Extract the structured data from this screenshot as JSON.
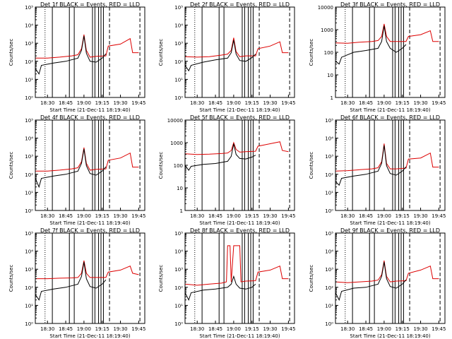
{
  "colors": {
    "events": "#000000",
    "lld": "#dd0000",
    "background": "#ffffff"
  },
  "common": {
    "xlabel": "Start Time (21-Dec-11 18:19:40)",
    "ylabel": "Counts/sec",
    "x_tick_labels": [
      "18:30",
      "18:45",
      "19:00",
      "19:15",
      "19:30",
      "19:45"
    ]
  },
  "chart_data": [
    {
      "type": "line",
      "title": "Det 1f BLACK = Events, RED = LLD",
      "scale": "log",
      "ylim": [
        1,
        100000
      ],
      "y_tick_labels": [
        "10⁰",
        "10¹",
        "10²",
        "10³",
        "10⁴",
        "10⁵"
      ],
      "series": [
        {
          "x": [
            "18:20",
            "18:30",
            "18:40",
            "18:50",
            "18:55",
            "18:58",
            "19:00",
            "19:02",
            "19:05",
            "19:10",
            "19:18",
            "19:20",
            "19:30",
            "19:38",
            "19:40",
            "19:45"
          ],
          "values": [
            150,
            150,
            170,
            200,
            230,
            500,
            3000,
            400,
            170,
            190,
            200,
            700,
            900,
            1800,
            300,
            300
          ],
          "color": "lld"
        },
        {
          "x": [
            "18:20",
            "18:23",
            "18:25",
            "18:35",
            "18:45",
            "18:55",
            "18:58",
            "19:00",
            "19:02",
            "19:05",
            "19:10",
            "19:15",
            "19:18"
          ],
          "values": [
            40,
            20,
            60,
            80,
            100,
            150,
            400,
            2500,
            280,
            100,
            90,
            150,
            260
          ],
          "color": "events"
        }
      ],
      "vlines_solid": [
        "18:34",
        "18:48",
        "18:52",
        "19:07",
        "19:09",
        "19:12",
        "19:14",
        "19:16"
      ],
      "vlines_dashed": [
        "19:21",
        "19:46"
      ],
      "vlines_dotted": [
        "18:28",
        "19:50"
      ]
    },
    {
      "type": "line",
      "title": "Det 2f BLACK = Events, RED = LLD",
      "scale": "log",
      "ylim": [
        1,
        100000
      ],
      "y_tick_labels": [
        "10⁰",
        "10¹",
        "10²",
        "10³",
        "10⁴",
        "10⁵"
      ],
      "series": [
        {
          "x": [
            "18:20",
            "18:30",
            "18:40",
            "18:50",
            "18:55",
            "18:58",
            "19:00",
            "19:02",
            "19:05",
            "19:10",
            "19:18",
            "19:20",
            "19:30",
            "19:38",
            "19:40",
            "19:45"
          ],
          "values": [
            180,
            170,
            180,
            220,
            250,
            400,
            2000,
            350,
            180,
            200,
            200,
            500,
            700,
            1200,
            300,
            300
          ],
          "color": "lld"
        },
        {
          "x": [
            "18:20",
            "18:23",
            "18:25",
            "18:35",
            "18:45",
            "18:55",
            "18:58",
            "19:00",
            "19:02",
            "19:05",
            "19:10",
            "19:15",
            "19:18"
          ],
          "values": [
            60,
            30,
            60,
            90,
            120,
            150,
            300,
            1500,
            250,
            110,
            100,
            160,
            250
          ],
          "color": "events"
        }
      ],
      "vlines_solid": [
        "18:34",
        "18:48",
        "18:52",
        "19:07",
        "19:09",
        "19:12",
        "19:14",
        "19:16"
      ],
      "vlines_dashed": [
        "19:21",
        "19:46"
      ],
      "vlines_dotted": [
        "18:28",
        "19:50"
      ]
    },
    {
      "type": "line",
      "title": "Det 3f BLACK = Events, RED = LLD",
      "scale": "log",
      "ylim": [
        1,
        10000
      ],
      "y_tick_labels": [
        "1",
        "10",
        "100",
        "1000",
        "10000"
      ],
      "series": [
        {
          "x": [
            "18:20",
            "18:30",
            "18:40",
            "18:50",
            "18:55",
            "18:58",
            "19:00",
            "19:02",
            "19:05",
            "19:10",
            "19:18",
            "19:20",
            "19:30",
            "19:38",
            "19:40",
            "19:45"
          ],
          "values": [
            260,
            250,
            280,
            300,
            330,
            500,
            1800,
            500,
            300,
            300,
            300,
            500,
            600,
            900,
            300,
            300
          ],
          "color": "lld"
        },
        {
          "x": [
            "18:20",
            "18:23",
            "18:25",
            "18:35",
            "18:45",
            "18:55",
            "18:58",
            "19:00",
            "19:02",
            "19:05",
            "19:10",
            "19:15",
            "19:18"
          ],
          "values": [
            40,
            30,
            60,
            100,
            120,
            150,
            300,
            1500,
            300,
            150,
            100,
            150,
            220
          ],
          "color": "events"
        }
      ],
      "vlines_solid": [
        "18:34",
        "18:48",
        "18:52",
        "19:07",
        "19:09",
        "19:12",
        "19:14",
        "19:16"
      ],
      "vlines_dashed": [
        "19:21",
        "19:46"
      ],
      "vlines_dotted": [
        "18:28",
        "19:50"
      ]
    },
    {
      "type": "line",
      "title": "Det 4f BLACK = Events, RED = LLD",
      "scale": "log",
      "ylim": [
        1,
        100000
      ],
      "y_tick_labels": [
        "10⁰",
        "10¹",
        "10²",
        "10³",
        "10⁴",
        "10⁵"
      ],
      "series": [
        {
          "x": [
            "18:20",
            "18:30",
            "18:40",
            "18:50",
            "18:55",
            "18:58",
            "19:00",
            "19:02",
            "19:05",
            "19:10",
            "19:18",
            "19:20",
            "19:30",
            "19:38",
            "19:40",
            "19:45"
          ],
          "values": [
            150,
            150,
            170,
            200,
            230,
            500,
            3000,
            400,
            170,
            190,
            200,
            600,
            800,
            1500,
            250,
            250
          ],
          "color": "lld"
        },
        {
          "x": [
            "18:20",
            "18:23",
            "18:25",
            "18:35",
            "18:45",
            "18:55",
            "18:58",
            "19:00",
            "19:02",
            "19:05",
            "19:10",
            "19:15",
            "19:18"
          ],
          "values": [
            60,
            20,
            60,
            80,
            100,
            150,
            400,
            2500,
            300,
            110,
            90,
            150,
            260
          ],
          "color": "events"
        }
      ],
      "vlines_solid": [
        "18:34",
        "18:48",
        "18:52",
        "19:07",
        "19:09",
        "19:12",
        "19:14",
        "19:16"
      ],
      "vlines_dashed": [
        "19:21",
        "19:46"
      ],
      "vlines_dotted": [
        "18:28",
        "19:50"
      ]
    },
    {
      "type": "line",
      "title": "Det 5f BLACK = Events, RED = LLD",
      "scale": "log",
      "ylim": [
        1,
        10000
      ],
      "y_tick_labels": [
        "1",
        "10",
        "100",
        "1000",
        "10000"
      ],
      "series": [
        {
          "x": [
            "18:20",
            "18:30",
            "18:40",
            "18:50",
            "18:55",
            "18:58",
            "19:00",
            "19:02",
            "19:05",
            "19:10",
            "19:18",
            "19:20",
            "19:30",
            "19:38",
            "19:40",
            "19:45"
          ],
          "values": [
            320,
            300,
            310,
            330,
            350,
            450,
            1000,
            500,
            380,
            400,
            420,
            700,
            900,
            1100,
            450,
            400
          ],
          "color": "lld"
        },
        {
          "x": [
            "18:20",
            "18:23",
            "18:25",
            "18:35",
            "18:45",
            "18:55",
            "18:58",
            "19:00",
            "19:02",
            "19:05",
            "19:10",
            "19:15",
            "19:18"
          ],
          "values": [
            100,
            60,
            90,
            110,
            120,
            150,
            250,
            900,
            300,
            200,
            190,
            230,
            280
          ],
          "color": "events"
        }
      ],
      "vlines_solid": [
        "18:34",
        "18:48",
        "18:52",
        "19:07",
        "19:09",
        "19:12",
        "19:14",
        "19:16"
      ],
      "vlines_dashed": [
        "19:21",
        "19:46"
      ],
      "vlines_dotted": [
        "18:28",
        "19:50"
      ]
    },
    {
      "type": "line",
      "title": "Det 6f BLACK = Events, RED = LLD",
      "scale": "log",
      "ylim": [
        1,
        100000
      ],
      "y_tick_labels": [
        "10⁰",
        "10¹",
        "10²",
        "10³",
        "10⁴",
        "10⁵"
      ],
      "series": [
        {
          "x": [
            "18:20",
            "18:30",
            "18:40",
            "18:50",
            "18:55",
            "18:58",
            "19:00",
            "19:02",
            "19:05",
            "19:10",
            "19:18",
            "19:20",
            "19:30",
            "19:38",
            "19:40",
            "19:45"
          ],
          "values": [
            150,
            160,
            180,
            200,
            230,
            500,
            5000,
            400,
            200,
            200,
            220,
            700,
            800,
            1500,
            250,
            250
          ],
          "color": "lld"
        },
        {
          "x": [
            "18:20",
            "18:23",
            "18:25",
            "18:35",
            "18:45",
            "18:55",
            "18:58",
            "19:00",
            "19:02",
            "19:05",
            "19:10",
            "19:15",
            "19:18"
          ],
          "values": [
            40,
            25,
            60,
            80,
            100,
            150,
            400,
            4000,
            300,
            110,
            90,
            150,
            260
          ],
          "color": "events"
        }
      ],
      "vlines_solid": [
        "18:34",
        "18:48",
        "18:52",
        "19:07",
        "19:09",
        "19:12",
        "19:14",
        "19:16"
      ],
      "vlines_dashed": [
        "19:21",
        "19:46"
      ],
      "vlines_dotted": [
        "18:28",
        "19:50"
      ]
    },
    {
      "type": "line",
      "title": "Det 7f BLACK = Events, RED = LLD",
      "scale": "log",
      "ylim": [
        1,
        100000
      ],
      "y_tick_labels": [
        "10⁰",
        "10¹",
        "10²",
        "10³",
        "10⁴",
        "10⁵"
      ],
      "series": [
        {
          "x": [
            "18:20",
            "18:30",
            "18:40",
            "18:50",
            "18:55",
            "18:58",
            "19:00",
            "19:02",
            "19:05",
            "19:10",
            "19:18",
            "19:20",
            "19:30",
            "19:38",
            "19:40",
            "19:45"
          ],
          "values": [
            300,
            300,
            320,
            330,
            350,
            600,
            3000,
            600,
            350,
            350,
            350,
            700,
            900,
            1500,
            600,
            500
          ],
          "color": "lld"
        },
        {
          "x": [
            "18:20",
            "18:23",
            "18:25",
            "18:35",
            "18:45",
            "18:55",
            "18:58",
            "19:00",
            "19:02",
            "19:05",
            "19:10",
            "19:15",
            "19:18"
          ],
          "values": [
            40,
            20,
            60,
            80,
            100,
            150,
            400,
            2500,
            300,
            110,
            90,
            150,
            260
          ],
          "color": "events"
        }
      ],
      "vlines_solid": [
        "18:34",
        "18:48",
        "18:52",
        "19:07",
        "19:09",
        "19:12",
        "19:14",
        "19:16"
      ],
      "vlines_dashed": [
        "19:21",
        "19:46"
      ],
      "vlines_dotted": [
        "18:28",
        "19:50"
      ]
    },
    {
      "type": "line",
      "title": "Det 8f BLACK = Events, RED = LLD",
      "scale": "log",
      "ylim": [
        1,
        100000
      ],
      "y_tick_labels": [
        "10⁰",
        "10¹",
        "10²",
        "10³",
        "10⁴",
        "10⁵"
      ],
      "series": [
        {
          "x": [
            "18:20",
            "18:30",
            "18:40",
            "18:50",
            "18:54",
            "18:55",
            "18:57",
            "18:58",
            "19:00",
            "19:02",
            "19:03",
            "19:05",
            "19:06",
            "19:10",
            "19:18",
            "19:20",
            "19:30",
            "19:38",
            "19:40",
            "19:45"
          ],
          "values": [
            150,
            130,
            150,
            170,
            200,
            20000,
            20000,
            200,
            20000,
            20000,
            20000,
            20000,
            200,
            220,
            230,
            700,
            900,
            1500,
            300,
            300
          ],
          "color": "lld"
        },
        {
          "x": [
            "18:20",
            "18:23",
            "18:25",
            "18:35",
            "18:45",
            "18:55",
            "18:58",
            "19:00",
            "19:02",
            "19:05",
            "19:10",
            "19:15",
            "19:18"
          ],
          "values": [
            50,
            20,
            50,
            70,
            80,
            100,
            150,
            400,
            150,
            90,
            80,
            100,
            150
          ],
          "color": "events"
        }
      ],
      "vlines_solid": [
        "18:34",
        "18:48",
        "18:52",
        "19:07",
        "19:09",
        "19:12",
        "19:14",
        "19:16"
      ],
      "vlines_dashed": [
        "19:21",
        "19:46"
      ],
      "vlines_dotted": [
        "18:28",
        "19:50"
      ]
    },
    {
      "type": "line",
      "title": "Det 9f BLACK = Events, RED = LLD",
      "scale": "log",
      "ylim": [
        1,
        100000
      ],
      "y_tick_labels": [
        "10⁰",
        "10¹",
        "10²",
        "10³",
        "10⁴",
        "10⁵"
      ],
      "series": [
        {
          "x": [
            "18:20",
            "18:30",
            "18:40",
            "18:50",
            "18:55",
            "18:58",
            "19:00",
            "19:02",
            "19:05",
            "19:10",
            "19:18",
            "19:20",
            "19:30",
            "19:38",
            "19:40",
            "19:45"
          ],
          "values": [
            200,
            180,
            200,
            220,
            250,
            500,
            3000,
            400,
            200,
            220,
            230,
            600,
            900,
            1500,
            300,
            300
          ],
          "color": "lld"
        },
        {
          "x": [
            "18:20",
            "18:23",
            "18:25",
            "18:35",
            "18:45",
            "18:55",
            "18:58",
            "19:00",
            "19:02",
            "19:05",
            "19:10",
            "19:15",
            "19:18"
          ],
          "values": [
            50,
            20,
            60,
            90,
            100,
            150,
            400,
            2500,
            300,
            110,
            90,
            150,
            260
          ],
          "color": "events"
        }
      ],
      "vlines_solid": [
        "18:34",
        "18:48",
        "18:52",
        "19:07",
        "19:09",
        "19:12",
        "19:14",
        "19:16"
      ],
      "vlines_dashed": [
        "19:21",
        "19:46"
      ],
      "vlines_dotted": [
        "18:28",
        "19:50"
      ]
    }
  ]
}
